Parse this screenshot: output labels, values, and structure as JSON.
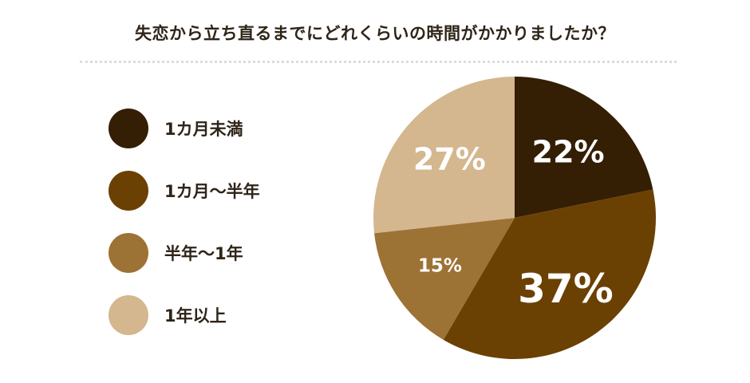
{
  "header": {
    "title": "失恋から立ち直るまでにどれくらいの時間がかかりましたか？"
  },
  "legend": {
    "items": [
      {
        "label": "1カ月未満",
        "color": "#341e04"
      },
      {
        "label": "1カ月〜半年",
        "color": "#6b4103"
      },
      {
        "label": "半年〜1年",
        "color": "#9d7235"
      },
      {
        "label": "1年以上",
        "color": "#d4b78f"
      }
    ]
  },
  "chart_data": {
    "type": "pie",
    "title": "失恋から立ち直るまでにどれくらいの時間がかかりましたか？",
    "categories": [
      "1カ月未満",
      "1カ月〜半年",
      "半年〜1年",
      "1年以上"
    ],
    "values": [
      22,
      37,
      15,
      27
    ],
    "value_labels": [
      "22%",
      "37%",
      "15%",
      "27%"
    ],
    "colors": [
      "#341e04",
      "#6b4103",
      "#9d7235",
      "#d4b78f"
    ],
    "legend_position": "left",
    "start": "12 o'clock",
    "direction": "clockwise"
  }
}
